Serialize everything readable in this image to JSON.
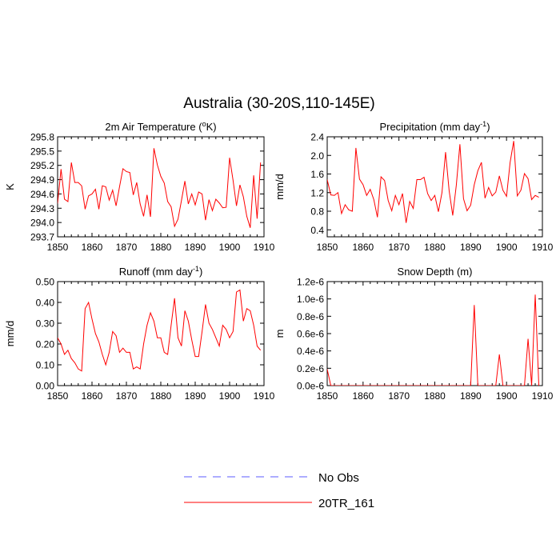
{
  "title": "Australia (30-20S,110-145E)",
  "legend": {
    "items": [
      {
        "label": "No Obs",
        "color": "#5b5bff",
        "dashed": true
      },
      {
        "label": "20TR_161",
        "color": "#ff0000",
        "dashed": false
      }
    ]
  },
  "chart_data": [
    {
      "type": "line",
      "title": "2m Air Temperature (°K)",
      "ylabel": "K",
      "xlim": [
        1850,
        1910
      ],
      "ylim": [
        293.7,
        295.8
      ],
      "xticks": [
        1850,
        1860,
        1870,
        1880,
        1890,
        1900,
        1910
      ],
      "yticks": [
        "293.7",
        "294.0",
        "294.3",
        "294.6",
        "294.9",
        "295.2",
        "295.5",
        "295.8"
      ],
      "series": [
        {
          "name": "20TR_161",
          "color": "#ff0000",
          "x": [
            1850,
            1851,
            1852,
            1853,
            1854,
            1855,
            1856,
            1857,
            1858,
            1859,
            1860,
            1861,
            1862,
            1863,
            1864,
            1865,
            1866,
            1867,
            1868,
            1869,
            1870,
            1871,
            1872,
            1873,
            1874,
            1875,
            1876,
            1877,
            1878,
            1879,
            1880,
            1881,
            1882,
            1883,
            1884,
            1885,
            1886,
            1887,
            1888,
            1889,
            1890,
            1891,
            1892,
            1893,
            1894,
            1895,
            1896,
            1897,
            1898,
            1899,
            1900,
            1901,
            1902,
            1903,
            1904,
            1905,
            1906,
            1907,
            1908,
            1909
          ],
          "values": [
            294.4,
            295.12,
            294.49,
            294.44,
            295.26,
            294.84,
            294.84,
            294.77,
            294.28,
            294.56,
            294.6,
            294.7,
            294.28,
            294.77,
            294.75,
            294.47,
            294.68,
            294.35,
            294.75,
            295.13,
            295.07,
            295.05,
            294.58,
            294.84,
            294.39,
            294.13,
            294.58,
            294.12,
            295.56,
            295.21,
            294.97,
            294.83,
            294.44,
            294.33,
            293.92,
            294.07,
            294.46,
            294.87,
            294.39,
            294.6,
            294.37,
            294.64,
            294.6,
            294.05,
            294.48,
            294.25,
            294.49,
            294.41,
            294.31,
            294.32,
            295.36,
            294.89,
            294.35,
            294.79,
            294.54,
            294.13,
            293.89,
            294.99,
            294.08,
            295.26
          ]
        }
      ]
    },
    {
      "type": "line",
      "title": "Precipitation (mm day-1)",
      "ylabel": "mm/d",
      "xlim": [
        1850,
        1910
      ],
      "ylim": [
        0.25,
        2.4
      ],
      "xticks": [
        1850,
        1860,
        1870,
        1880,
        1890,
        1900,
        1910
      ],
      "yticks": [
        "0.4",
        "0.8",
        "1.2",
        "1.6",
        "2.0",
        "2.4"
      ],
      "series": [
        {
          "name": "20TR_161",
          "color": "#ff0000",
          "x": [
            1850,
            1851,
            1852,
            1853,
            1854,
            1855,
            1856,
            1857,
            1858,
            1859,
            1860,
            1861,
            1862,
            1863,
            1864,
            1865,
            1866,
            1867,
            1868,
            1869,
            1870,
            1871,
            1872,
            1873,
            1874,
            1875,
            1876,
            1877,
            1878,
            1879,
            1880,
            1881,
            1882,
            1883,
            1884,
            1885,
            1886,
            1887,
            1888,
            1889,
            1890,
            1891,
            1892,
            1893,
            1894,
            1895,
            1896,
            1897,
            1898,
            1899,
            1900,
            1901,
            1902,
            1903,
            1904,
            1905,
            1906,
            1907,
            1908,
            1909
          ],
          "values": [
            1.48,
            1.15,
            1.14,
            1.2,
            0.75,
            0.94,
            0.83,
            0.8,
            2.16,
            1.49,
            1.37,
            1.14,
            1.27,
            1.05,
            0.67,
            1.54,
            1.46,
            1.03,
            0.81,
            1.14,
            0.94,
            1.18,
            0.55,
            1.01,
            0.86,
            1.48,
            1.48,
            1.53,
            1.18,
            1.03,
            1.14,
            0.79,
            1.2,
            2.07,
            1.24,
            0.71,
            1.36,
            2.24,
            1.07,
            0.81,
            0.93,
            1.37,
            1.67,
            1.85,
            1.08,
            1.31,
            1.13,
            1.21,
            1.56,
            1.25,
            1.12,
            1.85,
            2.31,
            1.13,
            1.25,
            1.61,
            1.5,
            1.05,
            1.14,
            1.1
          ]
        }
      ]
    },
    {
      "type": "line",
      "title": "Runoff (mm day-1)",
      "ylabel": "mm/d",
      "xlim": [
        1850,
        1910
      ],
      "ylim": [
        0.0,
        0.5
      ],
      "xticks": [
        1850,
        1860,
        1870,
        1880,
        1890,
        1900,
        1910
      ],
      "yticks": [
        "0.00",
        "0.10",
        "0.20",
        "0.30",
        "0.40",
        "0.50"
      ],
      "series": [
        {
          "name": "20TR_161",
          "color": "#ff0000",
          "x": [
            1850,
            1851,
            1852,
            1853,
            1854,
            1855,
            1856,
            1857,
            1858,
            1859,
            1860,
            1861,
            1862,
            1863,
            1864,
            1865,
            1866,
            1867,
            1868,
            1869,
            1870,
            1871,
            1872,
            1873,
            1874,
            1875,
            1876,
            1877,
            1878,
            1879,
            1880,
            1881,
            1882,
            1883,
            1884,
            1885,
            1886,
            1887,
            1888,
            1889,
            1890,
            1891,
            1892,
            1893,
            1894,
            1895,
            1896,
            1897,
            1898,
            1899,
            1900,
            1901,
            1902,
            1903,
            1904,
            1905,
            1906,
            1907,
            1908,
            1909
          ],
          "values": [
            0.23,
            0.2,
            0.15,
            0.17,
            0.13,
            0.11,
            0.08,
            0.07,
            0.37,
            0.4,
            0.32,
            0.25,
            0.21,
            0.15,
            0.1,
            0.16,
            0.26,
            0.24,
            0.16,
            0.18,
            0.16,
            0.16,
            0.08,
            0.09,
            0.08,
            0.2,
            0.29,
            0.35,
            0.31,
            0.23,
            0.23,
            0.16,
            0.15,
            0.29,
            0.42,
            0.23,
            0.19,
            0.36,
            0.31,
            0.22,
            0.14,
            0.14,
            0.26,
            0.39,
            0.3,
            0.27,
            0.23,
            0.19,
            0.29,
            0.27,
            0.23,
            0.26,
            0.45,
            0.46,
            0.31,
            0.37,
            0.36,
            0.29,
            0.19,
            0.17
          ]
        }
      ]
    },
    {
      "type": "line",
      "title": "Snow Depth (m)",
      "ylabel": "m",
      "xlim": [
        1850,
        1910
      ],
      "ylim": [
        0.0,
        1.2e-06
      ],
      "xticks": [
        1850,
        1860,
        1870,
        1880,
        1890,
        1900,
        1910
      ],
      "yticks": [
        "0.0e-6",
        "0.2e-6",
        "0.4e-6",
        "0.6e-6",
        "0.8e-6",
        "1.0e-6",
        "1.2e-6"
      ],
      "series": [
        {
          "name": "20TR_161",
          "color": "#ff0000",
          "x": [
            1850,
            1851,
            1852,
            1853,
            1854,
            1855,
            1856,
            1857,
            1858,
            1859,
            1860,
            1861,
            1862,
            1863,
            1864,
            1865,
            1866,
            1867,
            1868,
            1869,
            1870,
            1871,
            1872,
            1873,
            1874,
            1875,
            1876,
            1877,
            1878,
            1879,
            1880,
            1881,
            1882,
            1883,
            1884,
            1885,
            1886,
            1887,
            1888,
            1889,
            1890,
            1891,
            1892,
            1893,
            1894,
            1895,
            1896,
            1897,
            1898,
            1899,
            1900,
            1901,
            1902,
            1903,
            1904,
            1905,
            1906,
            1907,
            1908,
            1909
          ],
          "values": [
            1.9e-07,
            0,
            0,
            0,
            0,
            0,
            0,
            0,
            0,
            0,
            0,
            0,
            0,
            0,
            0,
            0,
            0,
            0,
            0,
            0,
            0,
            0,
            0,
            0,
            0,
            0,
            0,
            0,
            0,
            0,
            0,
            0,
            0,
            0,
            0,
            0,
            0,
            0,
            0,
            0,
            0,
            9.3e-07,
            0,
            0,
            0,
            0,
            0,
            0,
            3.6e-07,
            0,
            0,
            0,
            0,
            0,
            0,
            0,
            5.4e-07,
            0,
            1.05e-06,
            0
          ]
        }
      ]
    }
  ]
}
